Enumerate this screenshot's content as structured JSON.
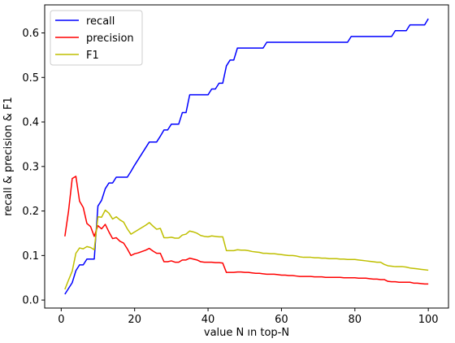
{
  "chart_data": {
    "type": "line",
    "title": "",
    "xlabel": "value N ın top-N",
    "ylabel": "recall & precision & F1",
    "xlim": [
      -4.5,
      105.5
    ],
    "ylim": [
      -0.018,
      0.663
    ],
    "xticks": [
      0,
      20,
      40,
      60,
      80,
      100
    ],
    "xtick_labels": [
      "0",
      "20",
      "40",
      "60",
      "80",
      "100"
    ],
    "yticks": [
      0.0,
      0.1,
      0.2,
      0.3,
      0.4,
      0.5,
      0.6
    ],
    "ytick_labels": [
      "0.0",
      "0.1",
      "0.2",
      "0.3",
      "0.4",
      "0.5",
      "0.6"
    ],
    "grid": false,
    "legend_position": "top-left",
    "series": [
      {
        "name": "recall",
        "color": "#0000ff",
        "x": [
          1,
          2,
          3,
          4,
          5,
          6,
          7,
          8,
          9,
          10,
          11,
          12,
          13,
          14,
          15,
          16,
          17,
          18,
          19,
          20,
          21,
          22,
          23,
          24,
          25,
          26,
          27,
          28,
          29,
          30,
          31,
          32,
          33,
          34,
          35,
          36,
          37,
          38,
          39,
          40,
          41,
          42,
          43,
          44,
          45,
          46,
          47,
          48,
          49,
          50,
          51,
          52,
          53,
          54,
          55,
          56,
          57,
          58,
          59,
          60,
          61,
          62,
          63,
          64,
          65,
          66,
          67,
          68,
          69,
          70,
          71,
          72,
          73,
          74,
          75,
          76,
          77,
          78,
          79,
          80,
          81,
          82,
          83,
          84,
          85,
          86,
          87,
          88,
          89,
          90,
          91,
          92,
          93,
          94,
          95,
          96,
          97,
          98,
          99,
          100
        ],
        "y": [
          0.013,
          0.026,
          0.039,
          0.066,
          0.079,
          0.079,
          0.092,
          0.092,
          0.092,
          0.211,
          0.224,
          0.25,
          0.263,
          0.263,
          0.276,
          0.276,
          0.276,
          0.276,
          0.289,
          0.303,
          0.316,
          0.329,
          0.342,
          0.355,
          0.355,
          0.355,
          0.368,
          0.382,
          0.382,
          0.395,
          0.395,
          0.395,
          0.421,
          0.421,
          0.461,
          0.461,
          0.461,
          0.461,
          0.461,
          0.461,
          0.474,
          0.474,
          0.487,
          0.487,
          0.526,
          0.539,
          0.539,
          0.566,
          0.566,
          0.566,
          0.566,
          0.566,
          0.566,
          0.566,
          0.566,
          0.579,
          0.579,
          0.579,
          0.579,
          0.579,
          0.579,
          0.579,
          0.579,
          0.579,
          0.579,
          0.579,
          0.579,
          0.579,
          0.579,
          0.579,
          0.579,
          0.579,
          0.579,
          0.579,
          0.579,
          0.579,
          0.579,
          0.579,
          0.592,
          0.592,
          0.592,
          0.592,
          0.592,
          0.592,
          0.592,
          0.592,
          0.592,
          0.592,
          0.592,
          0.592,
          0.605,
          0.605,
          0.605,
          0.605,
          0.618,
          0.618,
          0.618,
          0.618,
          0.618,
          0.632
        ]
      },
      {
        "name": "precision",
        "color": "#ff0000",
        "x": [
          1,
          2,
          3,
          4,
          5,
          6,
          7,
          8,
          9,
          10,
          11,
          12,
          13,
          14,
          15,
          16,
          17,
          18,
          19,
          20,
          21,
          22,
          23,
          24,
          25,
          26,
          27,
          28,
          29,
          30,
          31,
          32,
          33,
          34,
          35,
          36,
          37,
          38,
          39,
          40,
          41,
          42,
          43,
          44,
          45,
          46,
          47,
          48,
          49,
          50,
          51,
          52,
          53,
          54,
          55,
          56,
          57,
          58,
          59,
          60,
          61,
          62,
          63,
          64,
          65,
          66,
          67,
          68,
          69,
          70,
          71,
          72,
          73,
          74,
          75,
          76,
          77,
          78,
          79,
          80,
          81,
          82,
          83,
          84,
          85,
          86,
          87,
          88,
          89,
          90,
          91,
          92,
          93,
          94,
          95,
          96,
          97,
          98,
          99,
          100
        ],
        "y": [
          0.143,
          0.2,
          0.273,
          0.278,
          0.222,
          0.208,
          0.172,
          0.165,
          0.143,
          0.167,
          0.16,
          0.17,
          0.153,
          0.138,
          0.14,
          0.132,
          0.128,
          0.115,
          0.1,
          0.104,
          0.106,
          0.109,
          0.112,
          0.116,
          0.11,
          0.105,
          0.105,
          0.086,
          0.086,
          0.088,
          0.085,
          0.085,
          0.09,
          0.09,
          0.094,
          0.092,
          0.09,
          0.086,
          0.085,
          0.085,
          0.085,
          0.084,
          0.084,
          0.083,
          0.062,
          0.062,
          0.062,
          0.063,
          0.063,
          0.062,
          0.062,
          0.061,
          0.06,
          0.06,
          0.059,
          0.058,
          0.058,
          0.058,
          0.057,
          0.056,
          0.056,
          0.055,
          0.055,
          0.054,
          0.053,
          0.053,
          0.053,
          0.053,
          0.052,
          0.052,
          0.052,
          0.051,
          0.051,
          0.051,
          0.051,
          0.051,
          0.05,
          0.05,
          0.05,
          0.05,
          0.049,
          0.049,
          0.049,
          0.048,
          0.047,
          0.047,
          0.046,
          0.046,
          0.042,
          0.041,
          0.041,
          0.04,
          0.04,
          0.04,
          0.04,
          0.038,
          0.038,
          0.037,
          0.036,
          0.036
        ]
      },
      {
        "name": "F1",
        "color": "#bfbf00",
        "x": [
          1,
          2,
          3,
          4,
          5,
          6,
          7,
          8,
          9,
          10,
          11,
          12,
          13,
          14,
          15,
          16,
          17,
          18,
          19,
          20,
          21,
          22,
          23,
          24,
          25,
          26,
          27,
          28,
          29,
          30,
          31,
          32,
          33,
          34,
          35,
          36,
          37,
          38,
          39,
          40,
          41,
          42,
          43,
          44,
          45,
          46,
          47,
          48,
          49,
          50,
          51,
          52,
          53,
          54,
          55,
          56,
          57,
          58,
          59,
          60,
          61,
          62,
          63,
          64,
          65,
          66,
          67,
          68,
          69,
          70,
          71,
          72,
          73,
          74,
          75,
          76,
          77,
          78,
          79,
          80,
          81,
          82,
          83,
          84,
          85,
          86,
          87,
          88,
          89,
          90,
          91,
          92,
          93,
          94,
          95,
          96,
          97,
          98,
          99,
          100
        ],
        "y": [
          0.024,
          0.045,
          0.065,
          0.105,
          0.117,
          0.115,
          0.12,
          0.118,
          0.113,
          0.187,
          0.186,
          0.202,
          0.195,
          0.182,
          0.187,
          0.18,
          0.175,
          0.16,
          0.148,
          0.153,
          0.158,
          0.163,
          0.168,
          0.174,
          0.166,
          0.159,
          0.161,
          0.14,
          0.14,
          0.141,
          0.139,
          0.139,
          0.146,
          0.148,
          0.155,
          0.153,
          0.15,
          0.145,
          0.143,
          0.142,
          0.144,
          0.143,
          0.142,
          0.142,
          0.111,
          0.111,
          0.111,
          0.113,
          0.112,
          0.112,
          0.111,
          0.109,
          0.108,
          0.107,
          0.105,
          0.105,
          0.104,
          0.104,
          0.103,
          0.102,
          0.101,
          0.1,
          0.1,
          0.099,
          0.097,
          0.096,
          0.096,
          0.096,
          0.095,
          0.095,
          0.094,
          0.094,
          0.093,
          0.093,
          0.093,
          0.092,
          0.092,
          0.091,
          0.091,
          0.091,
          0.09,
          0.089,
          0.088,
          0.087,
          0.086,
          0.085,
          0.085,
          0.08,
          0.077,
          0.076,
          0.075,
          0.075,
          0.075,
          0.074,
          0.072,
          0.071,
          0.07,
          0.069,
          0.068,
          0.067
        ]
      }
    ]
  }
}
